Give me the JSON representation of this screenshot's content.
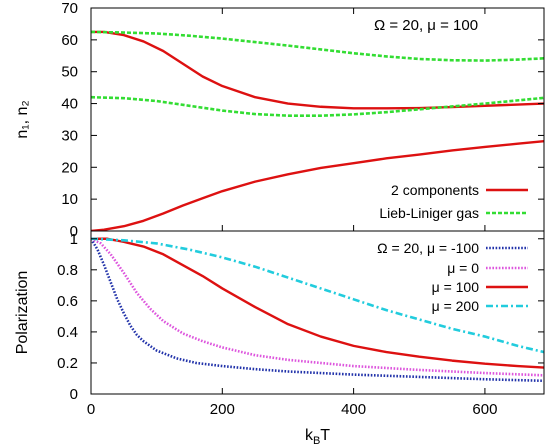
{
  "chart_data": [
    {
      "type": "line",
      "xlabel": "",
      "ylabel": "n₁, n₂",
      "xlim": [
        0,
        690
      ],
      "ylim": [
        0,
        70
      ],
      "yticks": [
        0,
        10,
        20,
        30,
        40,
        50,
        60,
        70
      ],
      "grid": false,
      "legend_position": "bottom-right",
      "annotation": "Ω = 20, μ = 100",
      "series": [
        {
          "name": "2 components",
          "color": "#dd1111",
          "style": "solid",
          "curves": [
            [
              [
                0,
                62.5
              ],
              [
                20,
                62.5
              ],
              [
                50,
                61.5
              ],
              [
                80,
                59.5
              ],
              [
                110,
                56.5
              ],
              [
                140,
                52.5
              ],
              [
                170,
                48.5
              ],
              [
                200,
                45.5
              ],
              [
                250,
                42
              ],
              [
                300,
                40
              ],
              [
                350,
                39
              ],
              [
                400,
                38.5
              ],
              [
                450,
                38.5
              ],
              [
                500,
                38.6
              ],
              [
                550,
                38.9
              ],
              [
                600,
                39.3
              ],
              [
                650,
                39.7
              ],
              [
                690,
                40
              ]
            ],
            [
              [
                0,
                0
              ],
              [
                20,
                0.4
              ],
              [
                50,
                1.5
              ],
              [
                80,
                3.2
              ],
              [
                110,
                5.5
              ],
              [
                140,
                8
              ],
              [
                170,
                10.3
              ],
              [
                200,
                12.5
              ],
              [
                250,
                15.5
              ],
              [
                300,
                17.8
              ],
              [
                350,
                19.8
              ],
              [
                400,
                21.3
              ],
              [
                450,
                22.8
              ],
              [
                500,
                24
              ],
              [
                550,
                25.3
              ],
              [
                600,
                26.4
              ],
              [
                650,
                27.4
              ],
              [
                690,
                28.2
              ]
            ]
          ]
        },
        {
          "name": "Lieb-Liniger gas",
          "color": "#33dd33",
          "style": "dashed",
          "curves": [
            [
              [
                0,
                62.5
              ],
              [
                50,
                62.3
              ],
              [
                100,
                62
              ],
              [
                150,
                61.3
              ],
              [
                200,
                60.4
              ],
              [
                250,
                59.3
              ],
              [
                300,
                58.2
              ],
              [
                350,
                57
              ],
              [
                400,
                55.8
              ],
              [
                450,
                54.8
              ],
              [
                500,
                54
              ],
              [
                550,
                53.6
              ],
              [
                600,
                53.5
              ],
              [
                650,
                53.8
              ],
              [
                690,
                54.2
              ]
            ],
            [
              [
                0,
                42
              ],
              [
                50,
                41.7
              ],
              [
                100,
                40.8
              ],
              [
                150,
                39.3
              ],
              [
                200,
                37.8
              ],
              [
                250,
                36.7
              ],
              [
                300,
                36.2
              ],
              [
                350,
                36.2
              ],
              [
                400,
                36.6
              ],
              [
                450,
                37.3
              ],
              [
                500,
                38.2
              ],
              [
                550,
                39.1
              ],
              [
                600,
                40
              ],
              [
                650,
                41
              ],
              [
                690,
                41.8
              ]
            ]
          ]
        }
      ]
    },
    {
      "type": "line",
      "xlabel": "k_BT",
      "ylabel": "Polarization",
      "xlim": [
        0,
        690
      ],
      "ylim": [
        0,
        1.05
      ],
      "xticks": [
        0,
        200,
        400,
        600
      ],
      "yticks": [
        0,
        0.2,
        0.4,
        0.6,
        0.8,
        1
      ],
      "grid": false,
      "legend_position": "top-right",
      "series": [
        {
          "name": "Ω = 20, μ = -100",
          "color": "#2233aa",
          "style": "dotted",
          "points": [
            [
              0,
              1
            ],
            [
              10,
              0.93
            ],
            [
              20,
              0.83
            ],
            [
              30,
              0.72
            ],
            [
              40,
              0.61
            ],
            [
              50,
              0.52
            ],
            [
              60,
              0.44
            ],
            [
              70,
              0.38
            ],
            [
              80,
              0.34
            ],
            [
              100,
              0.28
            ],
            [
              130,
              0.23
            ],
            [
              160,
              0.2
            ],
            [
              200,
              0.18
            ],
            [
              250,
              0.16
            ],
            [
              300,
              0.145
            ],
            [
              400,
              0.125
            ],
            [
              500,
              0.11
            ],
            [
              600,
              0.095
            ],
            [
              690,
              0.085
            ]
          ]
        },
        {
          "name": "μ = 0",
          "color": "#dd55dd",
          "style": "dotted",
          "points": [
            [
              0,
              1
            ],
            [
              15,
              0.97
            ],
            [
              30,
              0.9
            ],
            [
              50,
              0.78
            ],
            [
              70,
              0.65
            ],
            [
              90,
              0.55
            ],
            [
              110,
              0.47
            ],
            [
              140,
              0.39
            ],
            [
              170,
              0.34
            ],
            [
              200,
              0.3
            ],
            [
              250,
              0.25
            ],
            [
              300,
              0.22
            ],
            [
              400,
              0.18
            ],
            [
              500,
              0.155
            ],
            [
              600,
              0.135
            ],
            [
              690,
              0.12
            ]
          ]
        },
        {
          "name": "μ = 100",
          "color": "#dd1111",
          "style": "solid",
          "points": [
            [
              0,
              1
            ],
            [
              25,
              1
            ],
            [
              50,
              0.98
            ],
            [
              80,
              0.95
            ],
            [
              110,
              0.9
            ],
            [
              140,
              0.83
            ],
            [
              170,
              0.76
            ],
            [
              200,
              0.68
            ],
            [
              250,
              0.56
            ],
            [
              300,
              0.45
            ],
            [
              350,
              0.37
            ],
            [
              400,
              0.31
            ],
            [
              450,
              0.27
            ],
            [
              500,
              0.24
            ],
            [
              550,
              0.215
            ],
            [
              600,
              0.195
            ],
            [
              650,
              0.18
            ],
            [
              690,
              0.17
            ]
          ]
        },
        {
          "name": "μ = 200",
          "color": "#22ccdd",
          "style": "dashdot",
          "points": [
            [
              0,
              1
            ],
            [
              50,
              0.99
            ],
            [
              100,
              0.97
            ],
            [
              150,
              0.93
            ],
            [
              200,
              0.88
            ],
            [
              250,
              0.82
            ],
            [
              300,
              0.75
            ],
            [
              350,
              0.68
            ],
            [
              400,
              0.61
            ],
            [
              450,
              0.54
            ],
            [
              500,
              0.48
            ],
            [
              550,
              0.42
            ],
            [
              600,
              0.37
            ],
            [
              650,
              0.31
            ],
            [
              690,
              0.27
            ]
          ]
        }
      ]
    }
  ]
}
